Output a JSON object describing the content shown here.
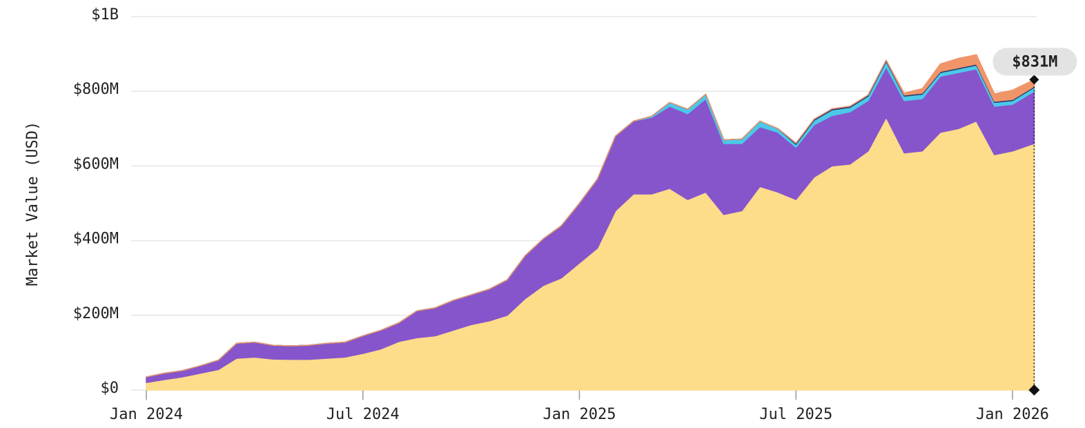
{
  "chart_data": {
    "type": "stacked-area",
    "y_label": "Market Value (USD)",
    "annotation": "$831M",
    "x": [
      0,
      0.5,
      1,
      1.5,
      2,
      2.5,
      3,
      3.5,
      4,
      4.5,
      5,
      5.5,
      6,
      6.5,
      7,
      7.5,
      8,
      8.5,
      9,
      9.5,
      10,
      10.5,
      11,
      11.5,
      12,
      12.5,
      13,
      13.5,
      14,
      14.5,
      15,
      15.5,
      16,
      16.5,
      17,
      17.5,
      18,
      18.5,
      19,
      19.5,
      20,
      20.5,
      21,
      21.5,
      22,
      22.5,
      23,
      23.5,
      24,
      24.6
    ],
    "xlim": [
      0,
      24.6
    ],
    "xticks": [
      {
        "value": 0,
        "label": "Jan 2024"
      },
      {
        "value": 6,
        "label": "Jul 2024"
      },
      {
        "value": 12,
        "label": "Jan 2025"
      },
      {
        "value": 18,
        "label": "Jul 2025"
      },
      {
        "value": 24,
        "label": "Jan 2026"
      }
    ],
    "ylim": [
      0,
      1000
    ],
    "yticks": [
      {
        "value": 0,
        "label": "$0"
      },
      {
        "value": 200,
        "label": "$200M"
      },
      {
        "value": 400,
        "label": "$400M"
      },
      {
        "value": 600,
        "label": "$600M"
      },
      {
        "value": 800,
        "label": "$800M"
      },
      {
        "value": 1000,
        "label": "$1B"
      }
    ],
    "grid": true,
    "series": [
      {
        "color": "#fddc8a",
        "values": [
          20,
          28,
          35,
          45,
          55,
          85,
          88,
          83,
          82,
          82,
          85,
          88,
          98,
          110,
          130,
          140,
          145,
          160,
          175,
          185,
          200,
          245,
          280,
          300,
          340,
          380,
          480,
          525,
          525,
          540,
          510,
          530,
          470,
          480,
          545,
          530,
          510,
          570,
          600,
          605,
          640,
          730,
          635,
          640,
          690,
          700,
          720,
          630,
          640,
          660
        ]
      },
      {
        "color": "#8655cc",
        "values": [
          15,
          17,
          17,
          20,
          25,
          40,
          40,
          37,
          36,
          38,
          40,
          40,
          47,
          50,
          50,
          72,
          75,
          80,
          80,
          85,
          95,
          115,
          125,
          140,
          160,
          185,
          200,
          195,
          205,
          220,
          230,
          250,
          190,
          180,
          160,
          160,
          140,
          140,
          135,
          140,
          135,
          135,
          140,
          140,
          150,
          150,
          140,
          130,
          125,
          140
        ]
      },
      {
        "color": "#4cc9e8",
        "values": [
          0,
          0,
          0,
          0,
          0,
          0,
          0,
          0,
          0,
          0,
          0,
          0,
          0,
          0,
          0,
          0,
          0,
          0,
          0,
          0,
          0,
          0,
          0,
          0,
          0,
          0,
          0,
          0,
          3,
          10,
          12,
          12,
          10,
          12,
          15,
          10,
          8,
          12,
          15,
          12,
          12,
          15,
          12,
          12,
          10,
          10,
          10,
          10,
          10,
          10
        ]
      },
      {
        "color": "#2a3a6e",
        "values": [
          0,
          0,
          0,
          0,
          0,
          0,
          0,
          0,
          0,
          0,
          0,
          0,
          0,
          0,
          0,
          0,
          0,
          0,
          0,
          0,
          0,
          0,
          0,
          0,
          0,
          0,
          0,
          0,
          0,
          0,
          0,
          0,
          0,
          0,
          0,
          0,
          3,
          3,
          3,
          3,
          3,
          3,
          3,
          3,
          3,
          3,
          3,
          3,
          3,
          3
        ]
      },
      {
        "color": "#f0956a",
        "values": [
          0,
          0,
          0,
          0,
          0,
          0,
          0,
          0,
          0,
          0,
          0,
          0,
          0,
          0,
          0,
          0,
          0,
          0,
          0,
          0,
          0,
          0,
          0,
          0,
          0,
          0,
          0,
          0,
          0,
          0,
          0,
          0,
          0,
          0,
          0,
          0,
          0,
          0,
          0,
          0,
          0,
          0,
          5,
          12,
          20,
          25,
          25,
          20,
          25,
          18
        ]
      }
    ]
  }
}
